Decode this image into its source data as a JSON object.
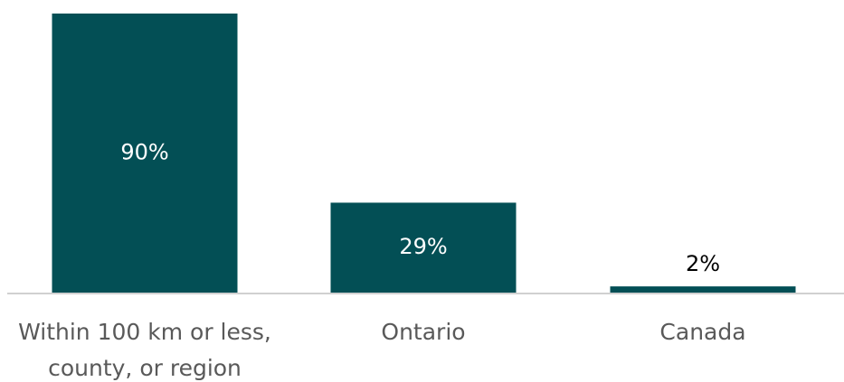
{
  "chart_data": {
    "type": "bar",
    "categories": [
      [
        "Within 100 km or less,",
        "county, or region"
      ],
      [
        "Ontario"
      ],
      [
        "Canada"
      ]
    ],
    "values": [
      90,
      29,
      2
    ],
    "data_labels": [
      "90%",
      "29%",
      "2%"
    ],
    "unit": "%",
    "ylim": [
      0,
      90
    ],
    "grid": false,
    "legend": "none",
    "colors": {
      "bar": "#034f55",
      "baseline": "#d0d0d0",
      "label_inside": "#ffffff",
      "label_outside": "#000000",
      "category_text": "#595959"
    }
  }
}
